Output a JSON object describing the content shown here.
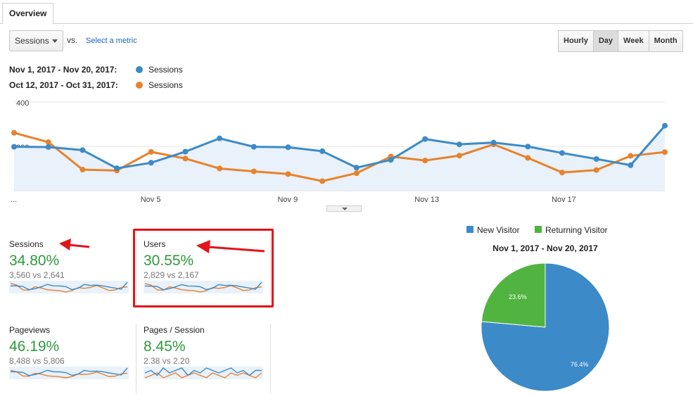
{
  "tabs": [
    {
      "label": "Overview"
    }
  ],
  "controls": {
    "metric": "Sessions",
    "vs": "vs.",
    "select_metric": "Select a metric",
    "granularity": [
      "Hourly",
      "Day",
      "Week",
      "Month"
    ],
    "active_granularity": "Day"
  },
  "legend": [
    {
      "range": "Nov 1, 2017 - Nov 20, 2017:",
      "series": "Sessions",
      "color": "#3c8ac7"
    },
    {
      "range": "Oct 12, 2017 - Oct 31, 2017:",
      "series": "Sessions",
      "color": "#e8822b"
    }
  ],
  "chart_data": [
    {
      "type": "line",
      "x_tick_labels": [
        "...",
        "Nov 5",
        "Nov 9",
        "Nov 13",
        "Nov 17"
      ],
      "y_tick_labels": [
        "400",
        "200"
      ],
      "ylim": [
        0,
        400
      ],
      "grid": true,
      "series": [
        {
          "name": "Sessions",
          "range": "Nov 1, 2017 - Nov 20, 2017",
          "color": "#3c8ac7",
          "fill": true,
          "values": [
            198,
            197,
            183,
            101,
            126,
            176,
            236,
            198,
            196,
            178,
            104,
            139,
            233,
            209,
            217,
            199,
            170,
            143,
            115,
            293
          ]
        },
        {
          "name": "Sessions",
          "range": "Oct 12, 2017 - Oct 31, 2017",
          "color": "#e8822b",
          "fill": false,
          "values": [
            261,
            219,
            95,
            91,
            175,
            145,
            100,
            87,
            75,
            43,
            79,
            154,
            136,
            158,
            209,
            148,
            82,
            93,
            157,
            174
          ]
        }
      ]
    },
    {
      "type": "pie",
      "title": "Nov 1, 2017 - Nov 20, 2017",
      "legend": [
        "New Visitor",
        "Returning Visitor"
      ],
      "slices": [
        {
          "label": "New Visitor",
          "value": 76.4,
          "display": "76.4%",
          "color": "#3c8ac7"
        },
        {
          "label": "Returning Visitor",
          "value": 23.6,
          "display": "23.6%",
          "color": "#52b440"
        }
      ]
    }
  ],
  "kpis": [
    {
      "title": "Sessions",
      "pct": "34.80%",
      "compare": "3,560 vs 2,641",
      "spark_current": [
        198,
        197,
        183,
        101,
        126,
        176,
        236,
        198,
        196,
        178,
        104,
        139,
        233,
        209,
        217,
        199,
        170,
        143,
        115,
        293
      ],
      "spark_previous": [
        261,
        219,
        95,
        91,
        175,
        145,
        100,
        87,
        75,
        43,
        79,
        154,
        136,
        158,
        209,
        148,
        82,
        93,
        157,
        174
      ]
    },
    {
      "title": "Users",
      "pct": "30.55%",
      "compare": "2,829 vs 2,167",
      "spark_current": [
        160,
        158,
        150,
        85,
        105,
        145,
        190,
        160,
        158,
        145,
        88,
        115,
        190,
        170,
        175,
        162,
        140,
        118,
        96,
        240
      ],
      "spark_previous": [
        210,
        178,
        80,
        76,
        142,
        118,
        84,
        72,
        64,
        38,
        66,
        126,
        112,
        130,
        170,
        122,
        68,
        78,
        128,
        142
      ]
    },
    {
      "title": "Pageviews",
      "pct": "46.19%",
      "compare": "8,488 vs 5,806",
      "spark_current": [
        470,
        460,
        430,
        240,
        300,
        410,
        560,
        470,
        460,
        420,
        250,
        330,
        550,
        490,
        510,
        470,
        400,
        340,
        270,
        700
      ],
      "spark_previous": [
        560,
        470,
        210,
        200,
        380,
        320,
        220,
        190,
        160,
        100,
        170,
        330,
        300,
        340,
        450,
        320,
        180,
        200,
        340,
        380
      ]
    },
    {
      "title": "Pages / Session",
      "pct": "8.45%",
      "compare": "2.38 vs 2.20",
      "spark_current": [
        2.3,
        2.4,
        2.2,
        2.5,
        2.3,
        2.4,
        2.5,
        2.2,
        2.4,
        2.3,
        2.5,
        2.4,
        2.3,
        2.4,
        2.5,
        2.3,
        2.4,
        2.2,
        2.4,
        2.4
      ],
      "spark_previous": [
        2.1,
        2.2,
        2.3,
        2.1,
        2.2,
        2.3,
        2.1,
        2.2,
        2.3,
        2.2,
        2.1,
        2.3,
        2.2,
        2.1,
        2.3,
        2.2,
        2.3,
        2.2,
        2.1,
        2.3
      ]
    }
  ]
}
